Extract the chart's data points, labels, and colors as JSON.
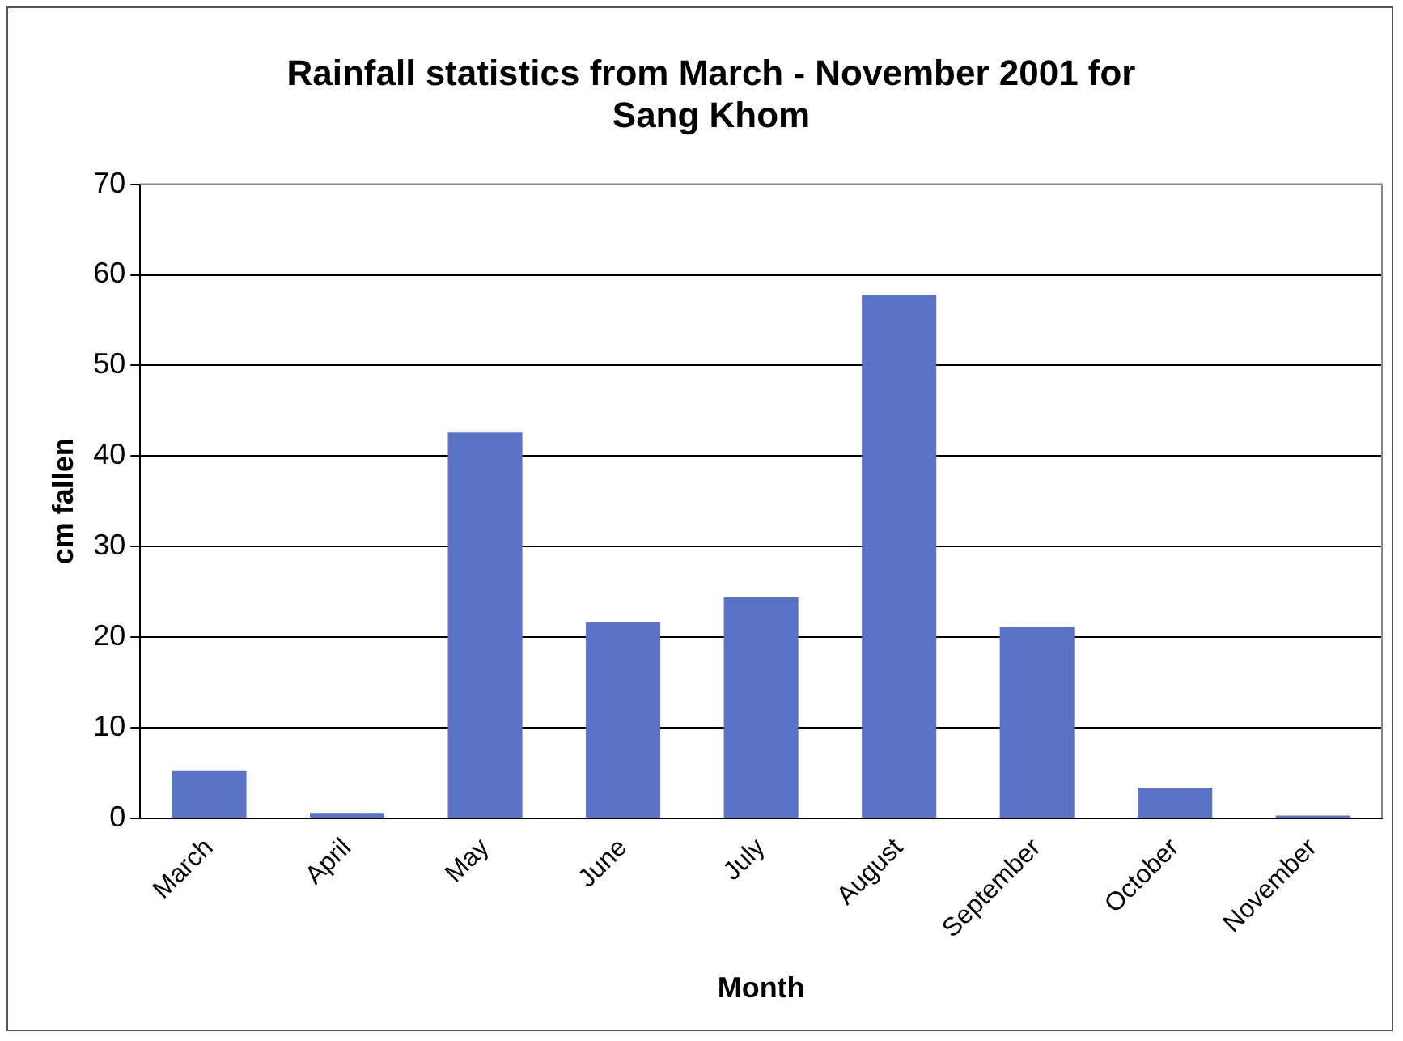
{
  "chart_data": {
    "type": "bar",
    "title": "Rainfall statistics from March - November 2001 for Sang Khom",
    "xlabel": "Month",
    "ylabel": "cm fallen",
    "categories": [
      "March",
      "April",
      "May",
      "June",
      "July",
      "August",
      "September",
      "October",
      "November"
    ],
    "values": [
      5.3,
      0.6,
      42.6,
      21.7,
      24.4,
      57.8,
      21.1,
      3.4,
      0.3
    ],
    "color": "#5b73c6",
    "ylim": [
      0,
      70
    ],
    "yticks": [
      0,
      10,
      20,
      30,
      40,
      50,
      60,
      70
    ],
    "grid": "y",
    "legend": false
  }
}
